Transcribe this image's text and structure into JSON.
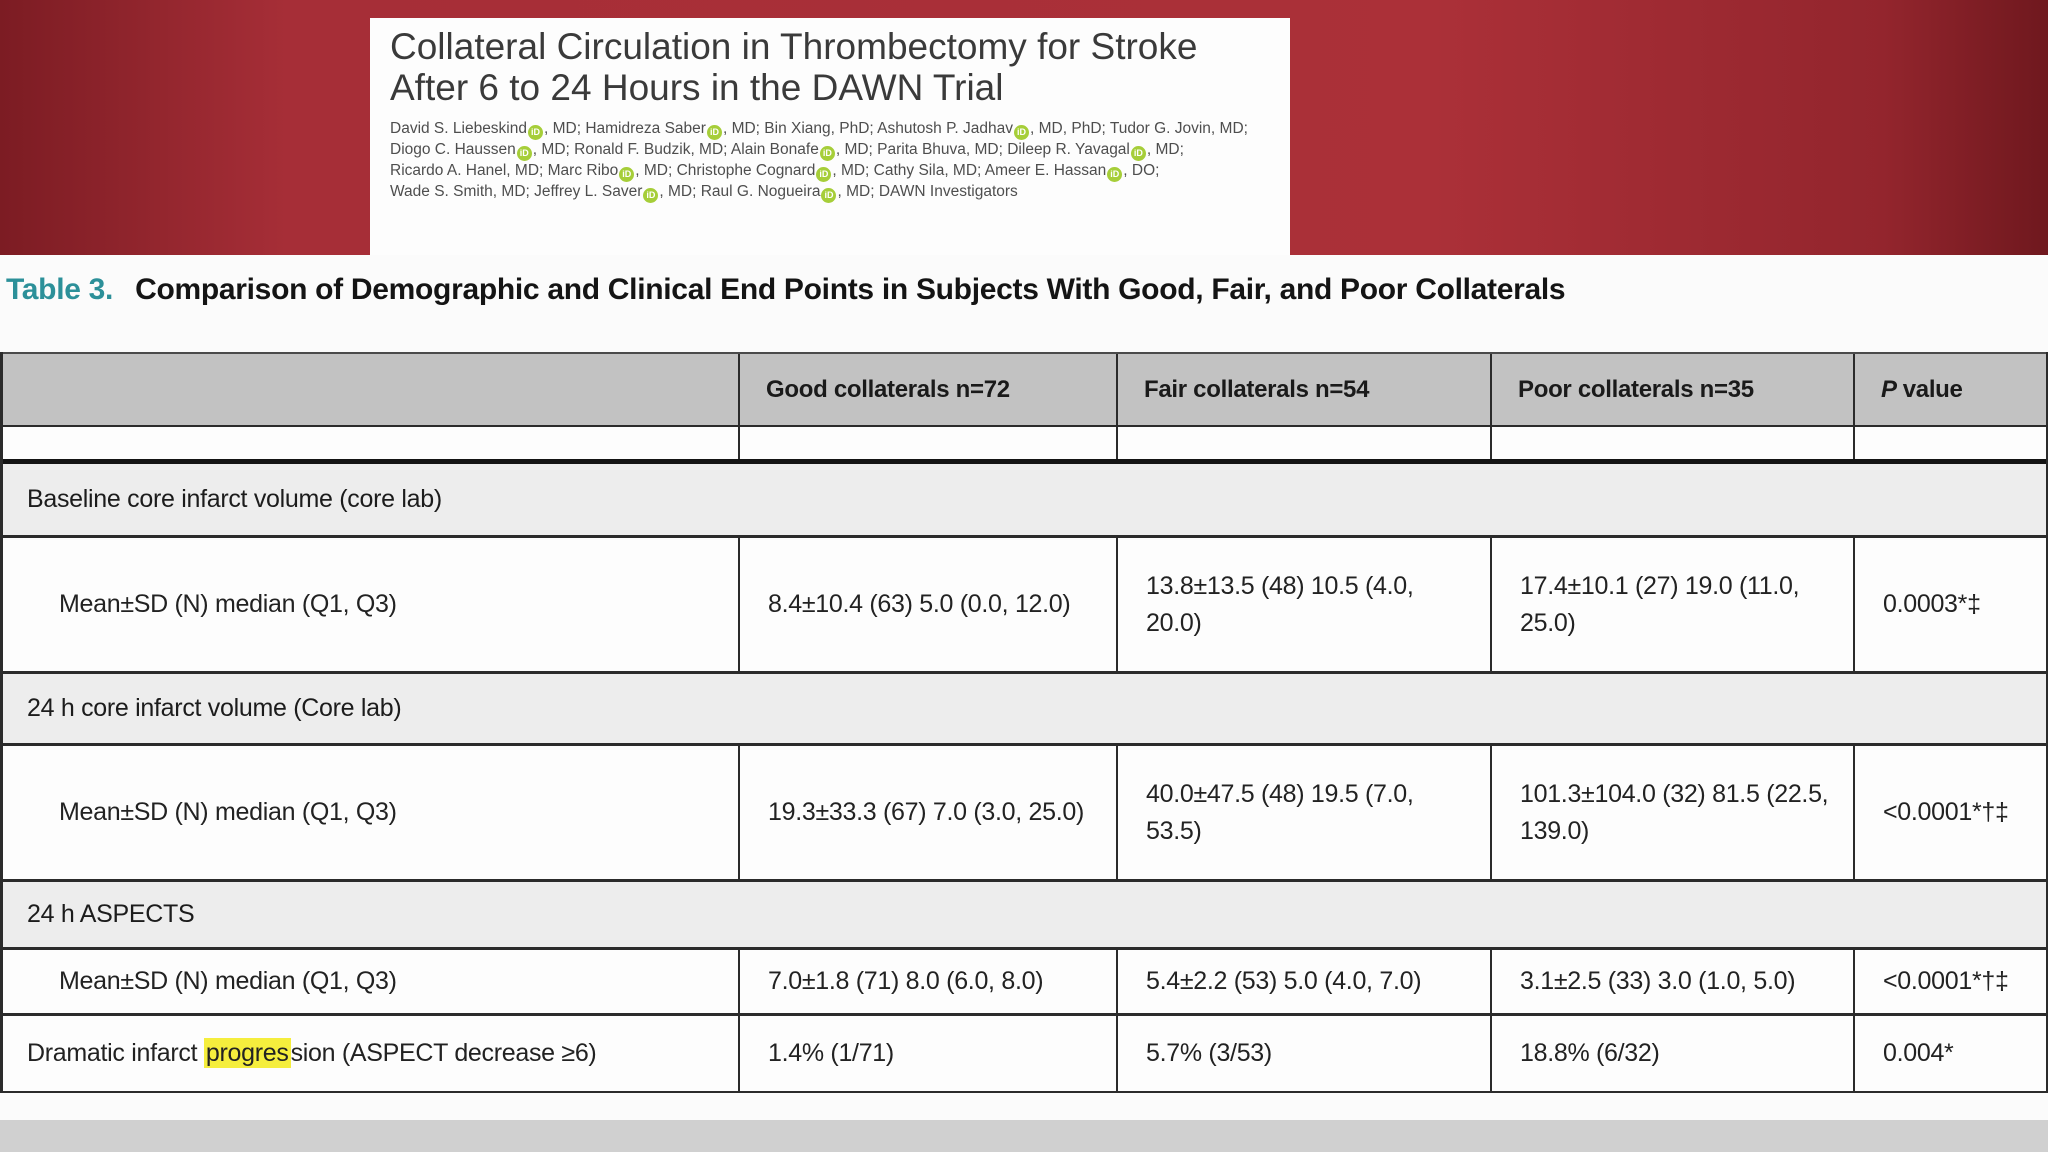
{
  "icons": {
    "orcid_label": "iD"
  },
  "colors": {
    "banner_red": "#a62e37",
    "table_label_teal": "#2c9099",
    "header_gray": "#c2c2c2",
    "section_gray": "#ededed",
    "highlight_yellow": "#f5ee3d",
    "orcid_green": "#a6ce39"
  },
  "banner": {
    "title_line1": "Collateral Circulation in Thrombectomy for Stroke",
    "title_line2": "After 6 to 24 Hours in the DAWN Trial",
    "author_lines": [
      {
        "segs": [
          "David S. Liebeskind",
          ", MD; Hamidreza Saber",
          ", MD; Bin Xiang, PhD; Ashutosh P. Jadhav",
          ", MD, PhD; Tudor G. Jovin, MD;"
        ]
      },
      {
        "segs": [
          "Diogo C. Haussen",
          ", MD; Ronald F. Budzik, MD; Alain Bonafe",
          ", MD; Parita Bhuva, MD; Dileep R. Yavagal",
          ", MD;"
        ]
      },
      {
        "segs": [
          "Ricardo A. Hanel, MD; Marc Ribo",
          ", MD; Christophe Cognard",
          ", MD; Cathy Sila, MD; Ameer E. Hassan",
          ", DO;"
        ]
      },
      {
        "segs": [
          "Wade S. Smith, MD; Jeffrey L. Saver",
          ", MD; Raul G. Nogueira",
          ", MD; DAWN Investigators"
        ]
      }
    ]
  },
  "table": {
    "label": "Table 3.",
    "title": "Comparison of Demographic and Clinical End Points in Subjects With Good, Fair, and Poor Collaterals",
    "columns": [
      {
        "label": "Good collaterals n=72"
      },
      {
        "label": "Fair collaterals n=54"
      },
      {
        "label": "Poor collaterals n=35"
      }
    ],
    "p_column": {
      "italic": "P",
      "rest": "value"
    },
    "rows": [
      {
        "type": "section",
        "label": "Baseline core infarct volume (core lab)"
      },
      {
        "type": "data",
        "label": "Mean±SD (N) median (Q1, Q3)",
        "values": [
          "8.4±10.4 (63) 5.0 (0.0, 12.0)",
          "13.8±13.5 (48) 10.5 (4.0, 20.0)",
          "17.4±10.1 (27) 19.0 (11.0, 25.0)",
          "0.0003*‡"
        ]
      },
      {
        "type": "section",
        "label": "24 h core infarct volume (Core lab)"
      },
      {
        "type": "data",
        "label": "Mean±SD (N) median (Q1, Q3)",
        "values": [
          "19.3±33.3 (67) 7.0 (3.0, 25.0)",
          "40.0±47.5 (48) 19.5 (7.0, 53.5)",
          "101.3±104.0 (32) 81.5 (22.5, 139.0)",
          "<0.0001*†‡"
        ]
      },
      {
        "type": "section",
        "label": "24 h ASPECTS"
      },
      {
        "type": "data",
        "label": "Mean±SD (N) median (Q1, Q3)",
        "values": [
          "7.0±1.8 (71) 8.0 (6.0, 8.0)",
          "5.4±2.2 (53) 5.0 (4.0, 7.0)",
          "3.1±2.5 (33) 3.0 (1.0, 5.0)",
          "<0.0001*†‡"
        ]
      },
      {
        "type": "data",
        "label_parts": {
          "before": "Dramatic infarct ",
          "highlight": "progres",
          "after": "sion (ASPECT decrease ≥6)"
        },
        "values": [
          "1.4% (1/71)",
          "5.7% (3/53)",
          "18.8% (6/32)",
          "0.004*"
        ]
      }
    ]
  }
}
